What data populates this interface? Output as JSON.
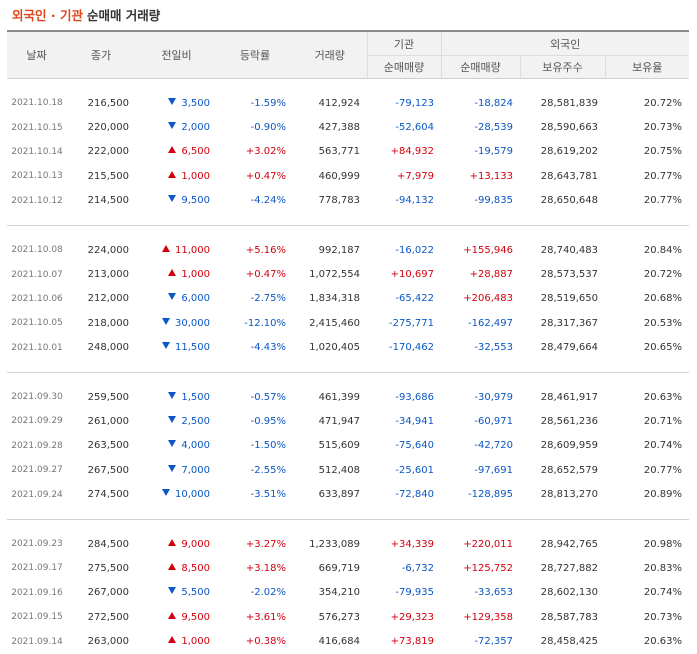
{
  "title": {
    "highlight": "외국인 · 기관",
    "rest": "순매매 거래량"
  },
  "headers": {
    "date": "날짜",
    "close": "종가",
    "change": "전일비",
    "rate": "등락률",
    "volume": "거래량",
    "institution": "기관",
    "foreign": "외국인",
    "inst_net": "순매매량",
    "foreign_net": "순매매량",
    "holdings": "보유주수",
    "ratio": "보유율"
  },
  "colors": {
    "up": "#d3000e",
    "down": "#0b57c5",
    "accent": "#e1461a"
  },
  "groups": [
    [
      {
        "date": "2021.10.18",
        "close": "216,500",
        "dir": "down",
        "change": "3,500",
        "rate": "-1.59%",
        "volume": "412,924",
        "inst": "-79,123",
        "foreign": "-18,824",
        "holdings": "28,581,839",
        "ratio": "20.72%"
      },
      {
        "date": "2021.10.15",
        "close": "220,000",
        "dir": "down",
        "change": "2,000",
        "rate": "-0.90%",
        "volume": "427,388",
        "inst": "-52,604",
        "foreign": "-28,539",
        "holdings": "28,590,663",
        "ratio": "20.73%"
      },
      {
        "date": "2021.10.14",
        "close": "222,000",
        "dir": "up",
        "change": "6,500",
        "rate": "+3.02%",
        "volume": "563,771",
        "inst": "+84,932",
        "foreign": "-19,579",
        "holdings": "28,619,202",
        "ratio": "20.75%"
      },
      {
        "date": "2021.10.13",
        "close": "215,500",
        "dir": "up",
        "change": "1,000",
        "rate": "+0.47%",
        "volume": "460,999",
        "inst": "+7,979",
        "foreign": "+13,133",
        "holdings": "28,643,781",
        "ratio": "20.77%"
      },
      {
        "date": "2021.10.12",
        "close": "214,500",
        "dir": "down",
        "change": "9,500",
        "rate": "-4.24%",
        "volume": "778,783",
        "inst": "-94,132",
        "foreign": "-99,835",
        "holdings": "28,650,648",
        "ratio": "20.77%"
      }
    ],
    [
      {
        "date": "2021.10.08",
        "close": "224,000",
        "dir": "up",
        "change": "11,000",
        "rate": "+5.16%",
        "volume": "992,187",
        "inst": "-16,022",
        "foreign": "+155,946",
        "holdings": "28,740,483",
        "ratio": "20.84%"
      },
      {
        "date": "2021.10.07",
        "close": "213,000",
        "dir": "up",
        "change": "1,000",
        "rate": "+0.47%",
        "volume": "1,072,554",
        "inst": "+10,697",
        "foreign": "+28,887",
        "holdings": "28,573,537",
        "ratio": "20.72%"
      },
      {
        "date": "2021.10.06",
        "close": "212,000",
        "dir": "down",
        "change": "6,000",
        "rate": "-2.75%",
        "volume": "1,834,318",
        "inst": "-65,422",
        "foreign": "+206,483",
        "holdings": "28,519,650",
        "ratio": "20.68%"
      },
      {
        "date": "2021.10.05",
        "close": "218,000",
        "dir": "down",
        "change": "30,000",
        "rate": "-12.10%",
        "volume": "2,415,460",
        "inst": "-275,771",
        "foreign": "-162,497",
        "holdings": "28,317,367",
        "ratio": "20.53%"
      },
      {
        "date": "2021.10.01",
        "close": "248,000",
        "dir": "down",
        "change": "11,500",
        "rate": "-4.43%",
        "volume": "1,020,405",
        "inst": "-170,462",
        "foreign": "-32,553",
        "holdings": "28,479,664",
        "ratio": "20.65%"
      }
    ],
    [
      {
        "date": "2021.09.30",
        "close": "259,500",
        "dir": "down",
        "change": "1,500",
        "rate": "-0.57%",
        "volume": "461,399",
        "inst": "-93,686",
        "foreign": "-30,979",
        "holdings": "28,461,917",
        "ratio": "20.63%"
      },
      {
        "date": "2021.09.29",
        "close": "261,000",
        "dir": "down",
        "change": "2,500",
        "rate": "-0.95%",
        "volume": "471,947",
        "inst": "-34,941",
        "foreign": "-60,971",
        "holdings": "28,561,236",
        "ratio": "20.71%"
      },
      {
        "date": "2021.09.28",
        "close": "263,500",
        "dir": "down",
        "change": "4,000",
        "rate": "-1.50%",
        "volume": "515,609",
        "inst": "-75,640",
        "foreign": "-42,720",
        "holdings": "28,609,959",
        "ratio": "20.74%"
      },
      {
        "date": "2021.09.27",
        "close": "267,500",
        "dir": "down",
        "change": "7,000",
        "rate": "-2.55%",
        "volume": "512,408",
        "inst": "-25,601",
        "foreign": "-97,691",
        "holdings": "28,652,579",
        "ratio": "20.77%"
      },
      {
        "date": "2021.09.24",
        "close": "274,500",
        "dir": "down",
        "change": "10,000",
        "rate": "-3.51%",
        "volume": "633,897",
        "inst": "-72,840",
        "foreign": "-128,895",
        "holdings": "28,813,270",
        "ratio": "20.89%"
      }
    ],
    [
      {
        "date": "2021.09.23",
        "close": "284,500",
        "dir": "up",
        "change": "9,000",
        "rate": "+3.27%",
        "volume": "1,233,089",
        "inst": "+34,339",
        "foreign": "+220,011",
        "holdings": "28,942,765",
        "ratio": "20.98%"
      },
      {
        "date": "2021.09.17",
        "close": "275,500",
        "dir": "up",
        "change": "8,500",
        "rate": "+3.18%",
        "volume": "669,719",
        "inst": "-6,732",
        "foreign": "+125,752",
        "holdings": "28,727,882",
        "ratio": "20.83%"
      },
      {
        "date": "2021.09.16",
        "close": "267,000",
        "dir": "down",
        "change": "5,500",
        "rate": "-2.02%",
        "volume": "354,210",
        "inst": "-79,935",
        "foreign": "-33,653",
        "holdings": "28,602,130",
        "ratio": "20.74%"
      },
      {
        "date": "2021.09.15",
        "close": "272,500",
        "dir": "up",
        "change": "9,500",
        "rate": "+3.61%",
        "volume": "576,273",
        "inst": "+29,323",
        "foreign": "+129,358",
        "holdings": "28,587,783",
        "ratio": "20.73%"
      },
      {
        "date": "2021.09.14",
        "close": "263,000",
        "dir": "up",
        "change": "1,000",
        "rate": "+0.38%",
        "volume": "416,684",
        "inst": "+73,819",
        "foreign": "-72,357",
        "holdings": "28,458,425",
        "ratio": "20.63%"
      }
    ]
  ]
}
